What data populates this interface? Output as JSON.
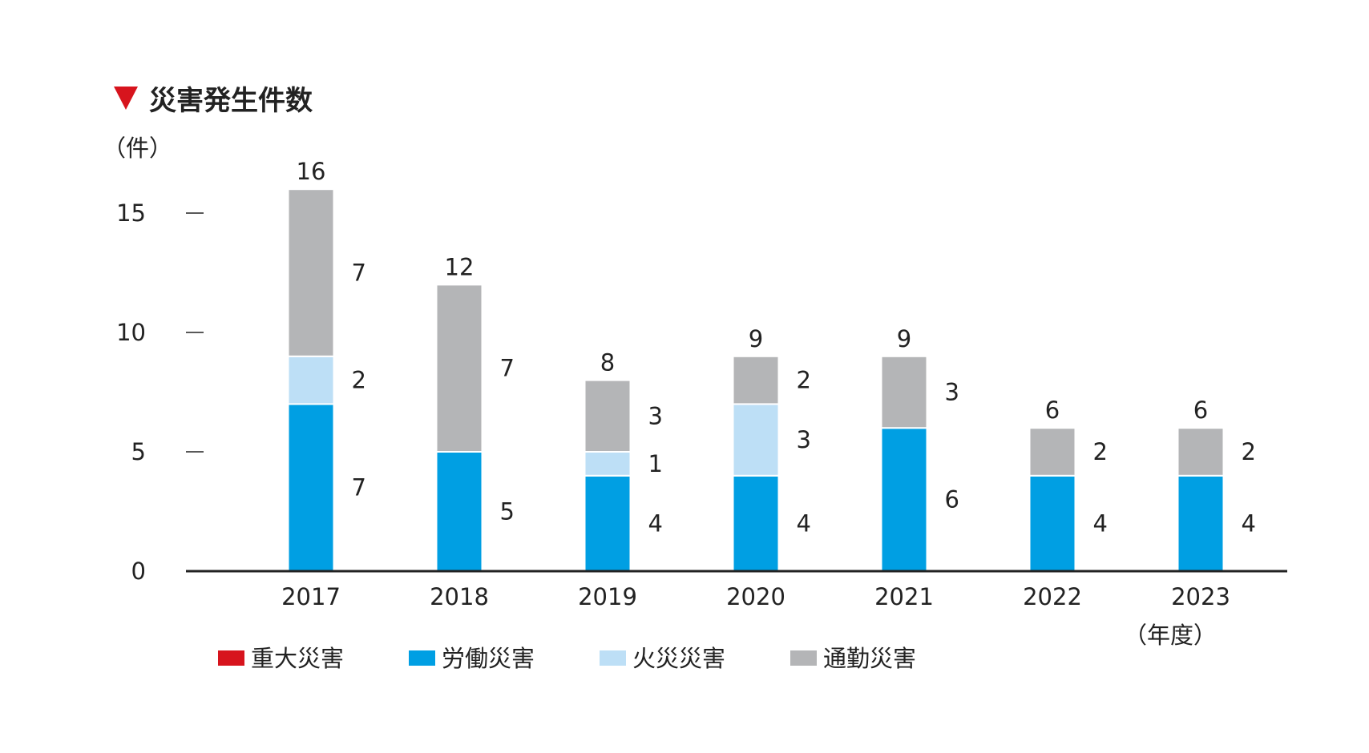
{
  "chart_data": {
    "type": "bar",
    "stacked": true,
    "title": "災害発生件数",
    "unit": "（件）",
    "x_suffix": "（年度）",
    "categories": [
      "2017",
      "2018",
      "2019",
      "2020",
      "2021",
      "2022",
      "2023"
    ],
    "series": [
      {
        "name": "重大災害",
        "color": "#d7141d",
        "values": [
          0,
          0,
          0,
          0,
          0,
          0,
          0
        ]
      },
      {
        "name": "労働災害",
        "color": "#009fe3",
        "values": [
          7,
          5,
          4,
          4,
          6,
          4,
          4
        ]
      },
      {
        "name": "火災災害",
        "color": "#bddff6",
        "values": [
          2,
          0,
          1,
          3,
          0,
          0,
          0
        ]
      },
      {
        "name": "通勤災害",
        "color": "#b4b5b7",
        "values": [
          7,
          7,
          3,
          2,
          3,
          2,
          2
        ]
      }
    ],
    "totals": [
      16,
      12,
      8,
      9,
      9,
      6,
      6
    ],
    "yticks": [
      0,
      5,
      10,
      15
    ],
    "ylim": [
      0,
      15
    ],
    "grid": false,
    "legend_position": "bottom",
    "accent_color": "#d7141d"
  }
}
